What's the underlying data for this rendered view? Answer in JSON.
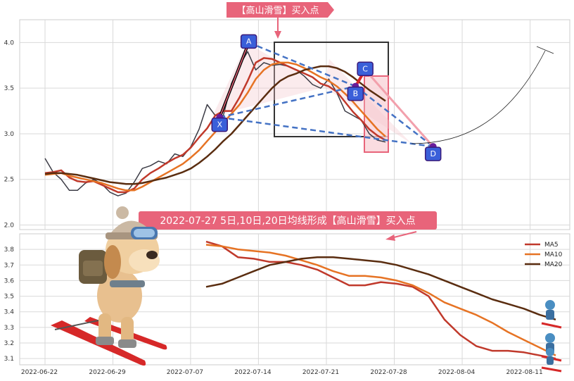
{
  "top_banner": "【高山滑雪】买入点",
  "mid_banner": "2022-07-27 5日,10日,20日均线形成【高山滑雪】买入点",
  "colors": {
    "price": "#3c3c46",
    "ma5": "#c0392b",
    "ma10": "#e67324",
    "ma20": "#5a2d10",
    "pattern": "#4472c4",
    "point_fill": "#3a5fd9",
    "banner": "#e8647a",
    "highlight": "#e8647a",
    "box": "#333333"
  },
  "icons": [
    "skiing-dog-illustration",
    "small-skier-icon"
  ],
  "chart_data": [
    {
      "type": "line",
      "ylim": [
        1.95,
        4.25
      ],
      "yticks": [
        "2.0",
        "2.5",
        "3.0",
        "3.5",
        "4.0"
      ],
      "pattern_points": [
        {
          "label": "X",
          "date": "2022-07-10",
          "value": 3.18
        },
        {
          "label": "A",
          "date": "2022-07-13",
          "value": 4.0
        },
        {
          "label": "B",
          "date": "2022-07-24",
          "value": 3.52
        },
        {
          "label": "C",
          "date": "2022-07-25",
          "value": 3.7
        },
        {
          "label": "D",
          "date": "2022-08-01",
          "value": 2.86
        }
      ],
      "series": [
        {
          "name": "price",
          "values": [
            [
              0,
              2.73
            ],
            [
              1,
              2.58
            ],
            [
              2,
              2.5
            ],
            [
              3,
              2.38
            ],
            [
              4,
              2.38
            ],
            [
              5,
              2.46
            ],
            [
              6,
              2.5
            ],
            [
              7,
              2.45
            ],
            [
              8,
              2.36
            ],
            [
              9,
              2.32
            ],
            [
              10,
              2.35
            ],
            [
              11,
              2.47
            ],
            [
              12,
              2.62
            ],
            [
              13,
              2.65
            ],
            [
              14,
              2.7
            ],
            [
              15,
              2.67
            ],
            [
              16,
              2.78
            ],
            [
              17,
              2.75
            ],
            [
              18,
              2.86
            ],
            [
              19,
              3.05
            ],
            [
              20,
              3.32
            ],
            [
              21,
              3.2
            ],
            [
              22,
              3.2
            ],
            [
              23,
              3.55
            ],
            [
              24,
              3.75
            ],
            [
              25,
              3.9
            ],
            [
              26,
              3.7
            ],
            [
              27,
              3.78
            ],
            [
              28,
              3.75
            ],
            [
              29,
              3.76
            ],
            [
              30,
              3.74
            ],
            [
              31,
              3.7
            ],
            [
              32,
              3.63
            ],
            [
              33,
              3.54
            ],
            [
              34,
              3.5
            ],
            [
              35,
              3.6
            ],
            [
              36,
              3.45
            ],
            [
              37,
              3.25
            ],
            [
              38,
              3.2
            ],
            [
              39,
              3.15
            ],
            [
              40,
              3.0
            ],
            [
              41,
              2.93
            ],
            [
              42,
              2.91
            ]
          ]
        },
        {
          "name": "ma5",
          "values": [
            [
              0,
              2.57
            ],
            [
              1,
              2.58
            ],
            [
              2,
              2.6
            ],
            [
              3,
              2.52
            ],
            [
              4,
              2.48
            ],
            [
              5,
              2.47
            ],
            [
              6,
              2.48
            ],
            [
              7,
              2.44
            ],
            [
              8,
              2.4
            ],
            [
              9,
              2.36
            ],
            [
              10,
              2.36
            ],
            [
              11,
              2.4
            ],
            [
              12,
              2.5
            ],
            [
              13,
              2.57
            ],
            [
              14,
              2.62
            ],
            [
              15,
              2.68
            ],
            [
              16,
              2.73
            ],
            [
              17,
              2.77
            ],
            [
              18,
              2.85
            ],
            [
              19,
              2.96
            ],
            [
              20,
              3.06
            ],
            [
              21,
              3.2
            ],
            [
              22,
              3.25
            ],
            [
              23,
              3.25
            ],
            [
              24,
              3.4
            ],
            [
              25,
              3.58
            ],
            [
              26,
              3.78
            ],
            [
              27,
              3.83
            ],
            [
              28,
              3.82
            ],
            [
              29,
              3.78
            ],
            [
              30,
              3.74
            ],
            [
              31,
              3.7
            ],
            [
              32,
              3.66
            ],
            [
              33,
              3.62
            ],
            [
              34,
              3.55
            ],
            [
              35,
              3.52
            ],
            [
              36,
              3.46
            ],
            [
              37,
              3.35
            ],
            [
              38,
              3.24
            ],
            [
              39,
              3.15
            ],
            [
              40,
              3.05
            ],
            [
              41,
              2.98
            ],
            [
              42,
              2.93
            ]
          ]
        },
        {
          "name": "ma10",
          "values": [
            [
              0,
              2.55
            ],
            [
              1,
              2.56
            ],
            [
              2,
              2.57
            ],
            [
              3,
              2.54
            ],
            [
              4,
              2.52
            ],
            [
              5,
              2.5
            ],
            [
              6,
              2.48
            ],
            [
              7,
              2.46
            ],
            [
              8,
              2.43
            ],
            [
              9,
              2.4
            ],
            [
              10,
              2.38
            ],
            [
              11,
              2.38
            ],
            [
              12,
              2.42
            ],
            [
              13,
              2.47
            ],
            [
              14,
              2.52
            ],
            [
              15,
              2.57
            ],
            [
              16,
              2.62
            ],
            [
              17,
              2.67
            ],
            [
              18,
              2.74
            ],
            [
              19,
              2.82
            ],
            [
              20,
              2.92
            ],
            [
              21,
              3.02
            ],
            [
              22,
              3.12
            ],
            [
              23,
              3.22
            ],
            [
              24,
              3.32
            ],
            [
              25,
              3.45
            ],
            [
              26,
              3.6
            ],
            [
              27,
              3.7
            ],
            [
              28,
              3.76
            ],
            [
              29,
              3.78
            ],
            [
              30,
              3.78
            ],
            [
              31,
              3.76
            ],
            [
              32,
              3.72
            ],
            [
              33,
              3.67
            ],
            [
              34,
              3.62
            ],
            [
              35,
              3.58
            ],
            [
              36,
              3.52
            ],
            [
              37,
              3.44
            ],
            [
              38,
              3.35
            ],
            [
              39,
              3.25
            ],
            [
              40,
              3.15
            ],
            [
              41,
              3.05
            ],
            [
              42,
              2.97
            ]
          ]
        },
        {
          "name": "ma20",
          "values": [
            [
              0,
              2.56
            ],
            [
              1,
              2.57
            ],
            [
              2,
              2.57
            ],
            [
              3,
              2.56
            ],
            [
              4,
              2.55
            ],
            [
              5,
              2.53
            ],
            [
              6,
              2.51
            ],
            [
              7,
              2.49
            ],
            [
              8,
              2.47
            ],
            [
              9,
              2.46
            ],
            [
              10,
              2.45
            ],
            [
              11,
              2.45
            ],
            [
              12,
              2.46
            ],
            [
              13,
              2.48
            ],
            [
              14,
              2.5
            ],
            [
              15,
              2.52
            ],
            [
              16,
              2.55
            ],
            [
              17,
              2.58
            ],
            [
              18,
              2.62
            ],
            [
              19,
              2.68
            ],
            [
              20,
              2.75
            ],
            [
              21,
              2.83
            ],
            [
              22,
              2.92
            ],
            [
              23,
              3.0
            ],
            [
              24,
              3.1
            ],
            [
              25,
              3.2
            ],
            [
              26,
              3.3
            ],
            [
              27,
              3.4
            ],
            [
              28,
              3.5
            ],
            [
              29,
              3.58
            ],
            [
              30,
              3.63
            ],
            [
              31,
              3.66
            ],
            [
              32,
              3.7
            ],
            [
              33,
              3.72
            ],
            [
              34,
              3.74
            ],
            [
              35,
              3.74
            ],
            [
              36,
              3.72
            ],
            [
              37,
              3.68
            ],
            [
              38,
              3.62
            ],
            [
              39,
              3.55
            ],
            [
              40,
              3.48
            ],
            [
              41,
              3.42
            ],
            [
              42,
              3.36
            ]
          ]
        }
      ]
    },
    {
      "type": "line",
      "ylim": [
        3.06,
        3.9
      ],
      "yticks": [
        "3.1",
        "3.2",
        "3.3",
        "3.4",
        "3.5",
        "3.6",
        "3.7",
        "3.8"
      ],
      "xticks": [
        "2022-06-22",
        "2022-06-29",
        "2022-07-07",
        "2022-07-14",
        "2022-07-21",
        "2022-07-28",
        "2022-08-04",
        "2022-08-11"
      ],
      "legend_position": "top-right",
      "series": [
        {
          "name": "MA5",
          "values": [
            [
              0,
              3.85
            ],
            [
              1,
              3.82
            ],
            [
              2,
              3.75
            ],
            [
              3,
              3.74
            ],
            [
              4,
              3.72
            ],
            [
              5,
              3.72
            ],
            [
              6,
              3.7
            ],
            [
              7,
              3.67
            ],
            [
              8,
              3.62
            ],
            [
              9,
              3.57
            ],
            [
              10,
              3.57
            ],
            [
              11,
              3.59
            ],
            [
              12,
              3.58
            ],
            [
              13,
              3.56
            ],
            [
              14,
              3.5
            ],
            [
              15,
              3.35
            ],
            [
              16,
              3.25
            ],
            [
              17,
              3.18
            ],
            [
              18,
              3.15
            ],
            [
              19,
              3.15
            ],
            [
              20,
              3.14
            ],
            [
              21,
              3.12
            ],
            [
              22,
              3.1
            ]
          ]
        },
        {
          "name": "MA10",
          "values": [
            [
              0,
              3.83
            ],
            [
              1,
              3.82
            ],
            [
              2,
              3.8
            ],
            [
              3,
              3.79
            ],
            [
              4,
              3.78
            ],
            [
              5,
              3.76
            ],
            [
              6,
              3.73
            ],
            [
              7,
              3.7
            ],
            [
              8,
              3.66
            ],
            [
              9,
              3.63
            ],
            [
              10,
              3.63
            ],
            [
              11,
              3.62
            ],
            [
              12,
              3.6
            ],
            [
              13,
              3.57
            ],
            [
              14,
              3.52
            ],
            [
              15,
              3.46
            ],
            [
              16,
              3.42
            ],
            [
              17,
              3.38
            ],
            [
              18,
              3.33
            ],
            [
              19,
              3.27
            ],
            [
              20,
              3.22
            ],
            [
              21,
              3.17
            ],
            [
              22,
              3.12
            ]
          ]
        },
        {
          "name": "MA20",
          "values": [
            [
              0,
              3.56
            ],
            [
              1,
              3.58
            ],
            [
              2,
              3.62
            ],
            [
              3,
              3.66
            ],
            [
              4,
              3.7
            ],
            [
              5,
              3.72
            ],
            [
              6,
              3.74
            ],
            [
              7,
              3.75
            ],
            [
              8,
              3.75
            ],
            [
              9,
              3.74
            ],
            [
              10,
              3.73
            ],
            [
              11,
              3.72
            ],
            [
              12,
              3.7
            ],
            [
              13,
              3.67
            ],
            [
              14,
              3.64
            ],
            [
              15,
              3.6
            ],
            [
              16,
              3.56
            ],
            [
              17,
              3.52
            ],
            [
              18,
              3.48
            ],
            [
              19,
              3.45
            ],
            [
              20,
              3.42
            ],
            [
              21,
              3.38
            ],
            [
              22,
              3.35
            ]
          ]
        }
      ]
    }
  ]
}
